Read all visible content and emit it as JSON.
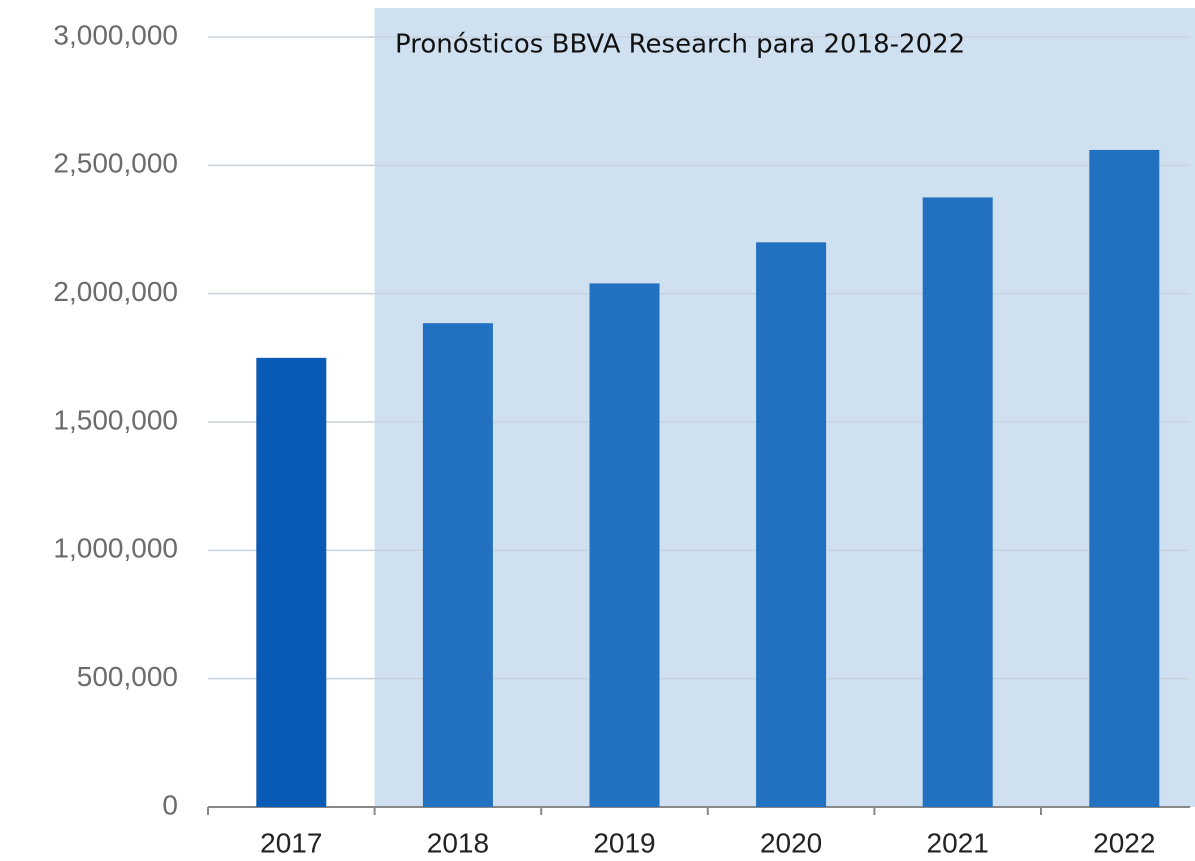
{
  "chart_data": {
    "type": "bar",
    "annotation": "Pronósticos BBVA Research para 2018-2022",
    "categories": [
      "2017",
      "2018",
      "2019",
      "2020",
      "2021",
      "2022"
    ],
    "values": [
      1750000,
      1885000,
      2040000,
      2200000,
      2375000,
      2560000
    ],
    "colors": [
      "#0a5bb5",
      "#2270c0",
      "#2270c0",
      "#2270c0",
      "#2270c0",
      "#2270c0"
    ],
    "shade": {
      "from": "2018",
      "to": "2022",
      "color": "#cfe0f1"
    },
    "ylim": [
      0,
      3000000
    ],
    "yticks": [
      0,
      {
        "value": 500000,
        "label": "500,000"
      },
      {
        "value": 1000000,
        "label": "1,000,000"
      },
      {
        "value": 1500000,
        "label": "1,500,000"
      },
      {
        "value": 2000000,
        "label": "2,000,000"
      },
      {
        "value": 2500000,
        "label": "2,500,000"
      },
      {
        "value": 3000000,
        "label": "3,000,000"
      }
    ],
    "grid": true
  }
}
